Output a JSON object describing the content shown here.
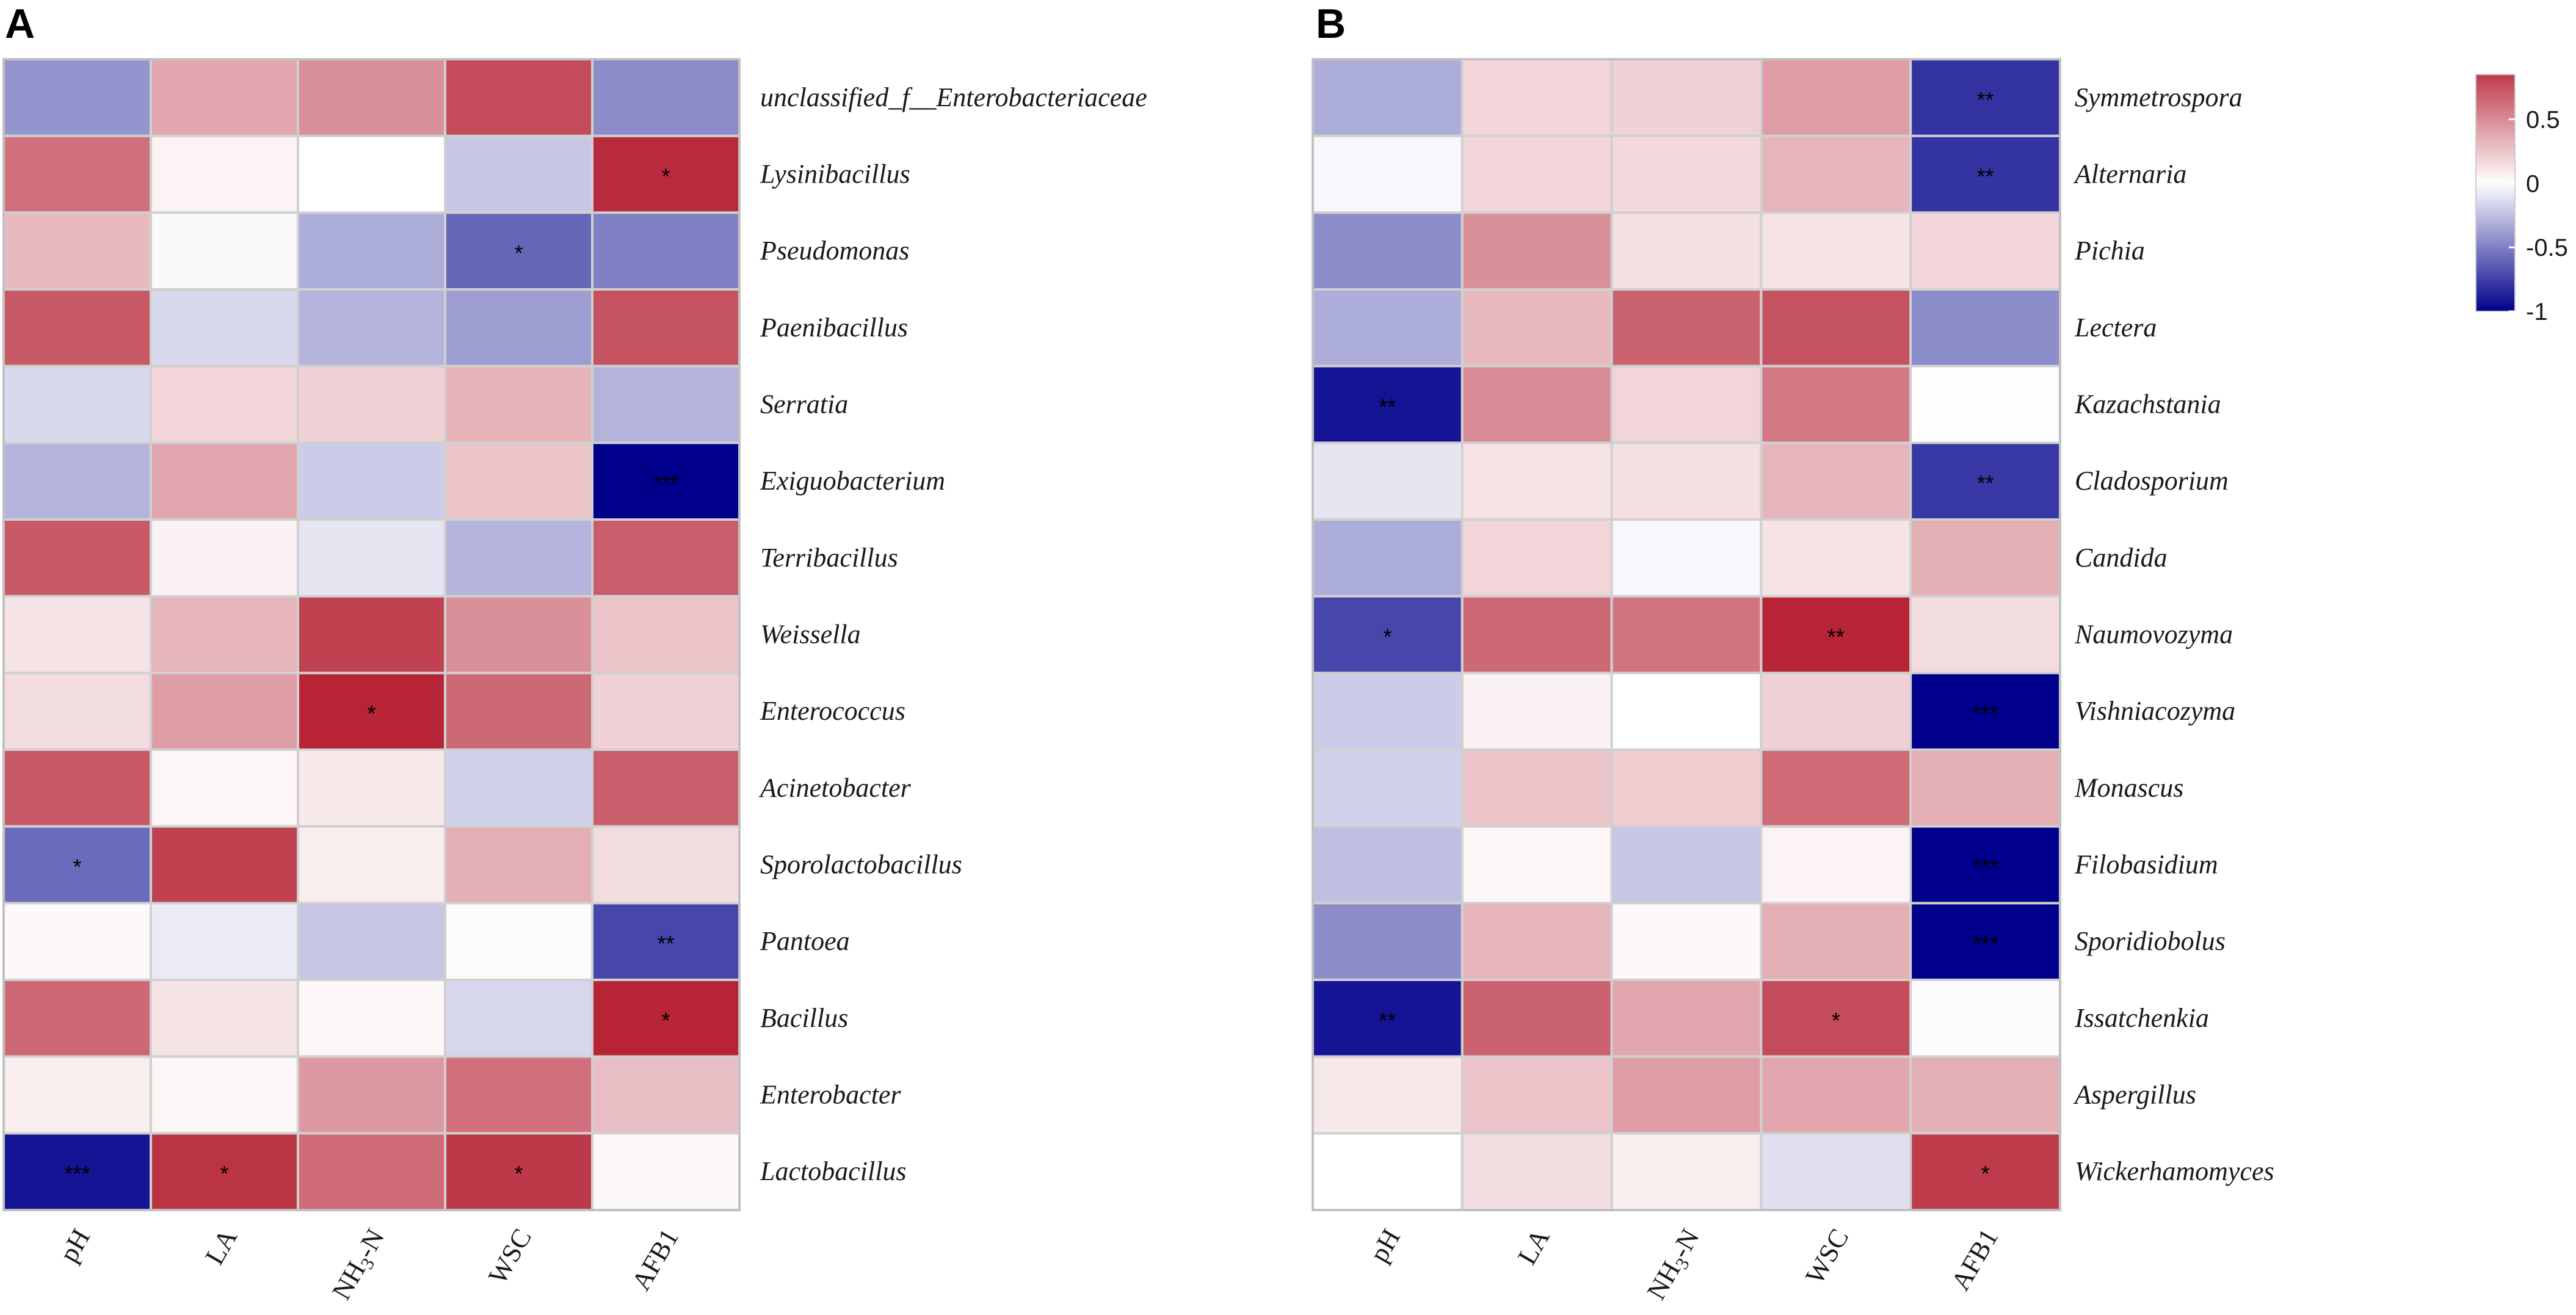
{
  "chart_data": [
    {
      "type": "heatmap",
      "panel": "A",
      "columns": [
        "pH",
        "LA",
        "NH3-N",
        "WSC",
        "AFB1"
      ],
      "rows": [
        "unclassified_f__Enterobacteriaceae",
        "Lysinibacillus",
        "Pseudomonas",
        "Paenibacillus",
        "Serratia",
        "Exiguobacterium",
        "Terribacillus",
        "Weissella",
        "Enterococcus",
        "Acinetobacter",
        "Sporolactobacillus",
        "Pantoea",
        "Bacillus",
        "Enterobacter",
        "Lactobacillus"
      ],
      "values": [
        [
          -0.42,
          0.38,
          0.48,
          0.78,
          -0.45
        ],
        [
          0.62,
          0.05,
          0.0,
          -0.22,
          0.92
        ],
        [
          0.3,
          -0.02,
          -0.32,
          -0.6,
          -0.5
        ],
        [
          0.72,
          -0.15,
          -0.3,
          -0.38,
          0.75
        ],
        [
          -0.15,
          0.18,
          0.2,
          0.33,
          -0.3
        ],
        [
          -0.3,
          0.38,
          -0.2,
          0.25,
          -1.0
        ],
        [
          0.72,
          0.06,
          -0.1,
          -0.3,
          0.7
        ],
        [
          0.12,
          0.32,
          0.82,
          0.48,
          0.25
        ],
        [
          0.15,
          0.42,
          0.95,
          0.65,
          0.2
        ],
        [
          0.72,
          0.04,
          0.1,
          -0.18,
          0.7
        ],
        [
          -0.58,
          0.82,
          0.08,
          0.35,
          0.15
        ],
        [
          0.03,
          -0.08,
          -0.22,
          0.02,
          -0.72
        ],
        [
          0.65,
          0.12,
          0.04,
          -0.16,
          0.95
        ],
        [
          0.08,
          0.04,
          0.44,
          0.62,
          0.28
        ],
        [
          -0.92,
          0.88,
          0.64,
          0.86,
          0.03
        ]
      ],
      "significance": [
        [
          "",
          "",
          "",
          "",
          ""
        ],
        [
          "",
          "",
          "",
          "",
          "*"
        ],
        [
          "",
          "",
          "",
          "*",
          ""
        ],
        [
          "",
          "",
          "",
          "",
          ""
        ],
        [
          "",
          "",
          "",
          "",
          ""
        ],
        [
          "",
          "",
          "",
          "",
          "***"
        ],
        [
          "",
          "",
          "",
          "",
          ""
        ],
        [
          "",
          "",
          "",
          "",
          ""
        ],
        [
          "",
          "",
          "*",
          "",
          ""
        ],
        [
          "",
          "",
          "",
          "",
          ""
        ],
        [
          "*",
          "",
          "",
          "",
          ""
        ],
        [
          "",
          "",
          "",
          "",
          "**"
        ],
        [
          "",
          "",
          "",
          "",
          "*"
        ],
        [
          "",
          "",
          "",
          "",
          ""
        ],
        [
          "***",
          "*",
          "",
          "*",
          ""
        ]
      ]
    },
    {
      "type": "heatmap",
      "panel": "B",
      "columns": [
        "pH",
        "LA",
        "NH3-N",
        "WSC",
        "AFB1"
      ],
      "rows": [
        "Symmetrospora",
        "Alternaria",
        "Pichia",
        "Lectera",
        "Kazachstania",
        "Cladosporium",
        "Candida",
        "Naumovozyma",
        "Vishniacozyma",
        "Monascus",
        "Filobasidium",
        "Sporidiobolus",
        "Issatchenkia",
        "Aspergillus",
        "Wickerhamomyces"
      ],
      "values": [
        [
          -0.32,
          0.18,
          0.2,
          0.42,
          -0.8
        ],
        [
          -0.03,
          0.18,
          0.16,
          0.32,
          -0.8
        ],
        [
          -0.45,
          0.48,
          0.14,
          0.12,
          0.18
        ],
        [
          -0.32,
          0.3,
          0.68,
          0.75,
          -0.45
        ],
        [
          -0.92,
          0.5,
          0.18,
          0.58,
          0.01
        ],
        [
          -0.1,
          0.12,
          0.14,
          0.32,
          -0.78
        ],
        [
          -0.32,
          0.18,
          -0.03,
          0.12,
          0.35
        ],
        [
          -0.72,
          0.65,
          0.6,
          0.95,
          0.15
        ],
        [
          -0.2,
          0.06,
          0.0,
          0.2,
          -1.0
        ],
        [
          -0.18,
          0.25,
          0.22,
          0.64,
          0.35
        ],
        [
          -0.25,
          0.04,
          -0.22,
          0.05,
          -1.0
        ],
        [
          -0.45,
          0.32,
          0.03,
          0.35,
          -1.0
        ],
        [
          -0.92,
          0.68,
          0.38,
          0.78,
          -0.01
        ],
        [
          0.1,
          0.26,
          0.42,
          0.38,
          0.35
        ],
        [
          0.0,
          0.15,
          0.08,
          -0.12,
          0.85
        ]
      ],
      "significance": [
        [
          "",
          "",
          "",
          "",
          "**"
        ],
        [
          "",
          "",
          "",
          "",
          "**"
        ],
        [
          "",
          "",
          "",
          "",
          ""
        ],
        [
          "",
          "",
          "",
          "",
          ""
        ],
        [
          "**",
          "",
          "",
          "",
          ""
        ],
        [
          "",
          "",
          "",
          "",
          "**"
        ],
        [
          "",
          "",
          "",
          "",
          ""
        ],
        [
          "*",
          "",
          "",
          "**",
          ""
        ],
        [
          "",
          "",
          "",
          "",
          "***"
        ],
        [
          "",
          "",
          "",
          "",
          ""
        ],
        [
          "",
          "",
          "",
          "",
          "***"
        ],
        [
          "",
          "",
          "",
          "",
          "***"
        ],
        [
          "**",
          "",
          "",
          "*",
          ""
        ],
        [
          "",
          "",
          "",
          "",
          ""
        ],
        [
          "",
          "",
          "",
          "",
          "*"
        ]
      ]
    }
  ],
  "colorbar": {
    "min": -1,
    "max": 0.85,
    "ticks": [
      {
        "value": 0.5,
        "label": "0.5"
      },
      {
        "value": 0,
        "label": "0"
      },
      {
        "value": -0.5,
        "label": "-0.5"
      },
      {
        "value": -1,
        "label": "-1"
      }
    ],
    "colors": {
      "low": "#00008b",
      "mid": "#ffffff",
      "high": "#b2182b"
    }
  }
}
